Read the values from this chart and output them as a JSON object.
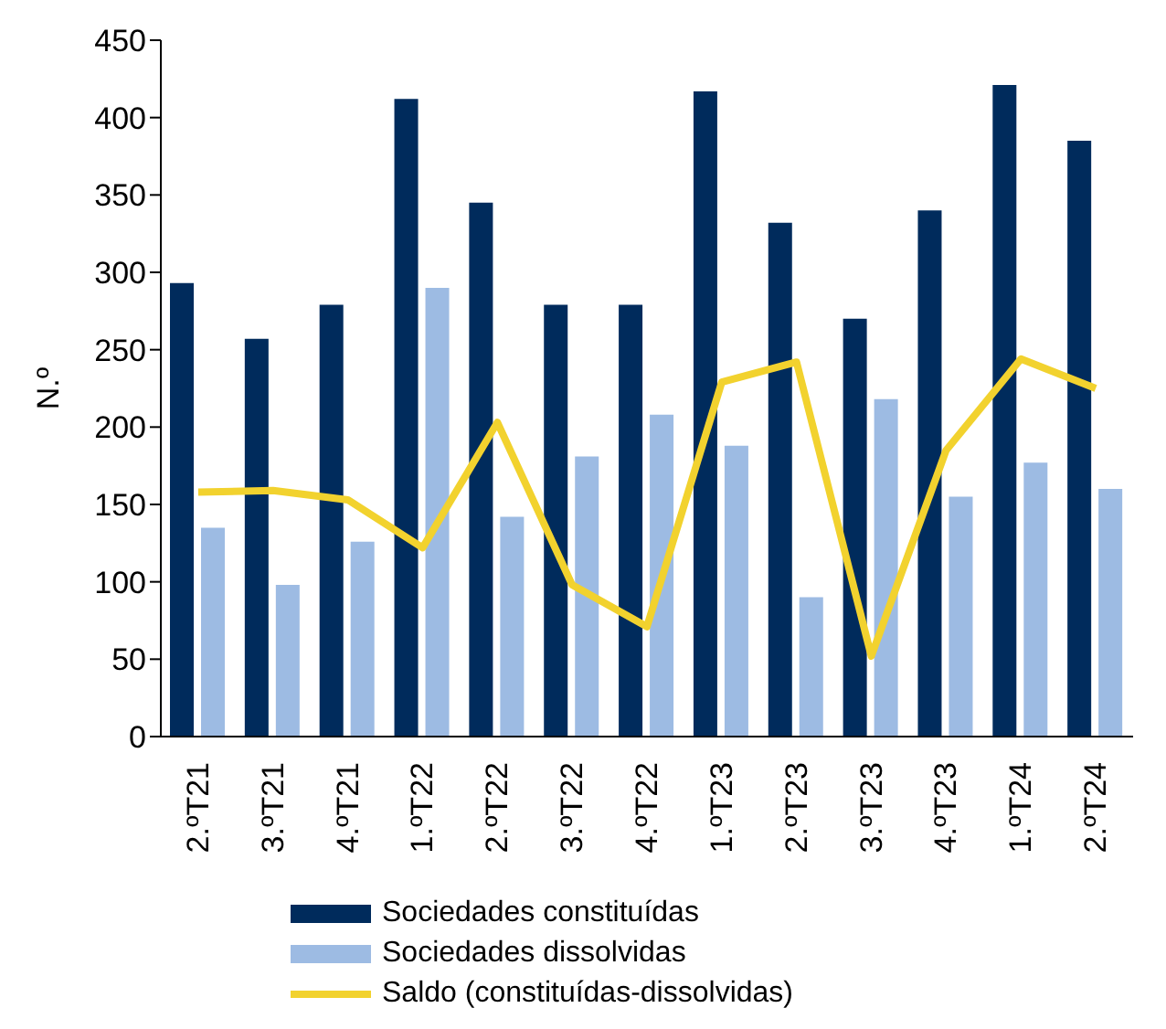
{
  "chart_data": {
    "type": "bar",
    "ylabel": "N.º",
    "categories": [
      "2.ºT21",
      "3.ºT21",
      "4.ºT21",
      "1.ºT22",
      "2.ºT22",
      "3.ºT22",
      "4.ºT22",
      "1.ºT23",
      "2.ºT23",
      "3.ºT23",
      "4.ºT23",
      "1.ºT24",
      "2.ºT24"
    ],
    "series": [
      {
        "name": "Sociedades constituídas",
        "color": "#002b5c",
        "values": [
          293,
          257,
          279,
          412,
          345,
          279,
          279,
          417,
          332,
          270,
          340,
          421,
          385
        ]
      },
      {
        "name": "Sociedades dissolvidas",
        "color": "#9dbbe3",
        "values": [
          135,
          98,
          126,
          290,
          142,
          181,
          208,
          188,
          90,
          218,
          155,
          177,
          160
        ]
      },
      {
        "name": "Saldo (constituídas-dissolvidas)",
        "type": "line",
        "color": "#f2d22e",
        "values": [
          158,
          159,
          153,
          122,
          203,
          98,
          71,
          229,
          242,
          52,
          185,
          244,
          225
        ]
      }
    ],
    "ylim": [
      0,
      450
    ],
    "yticks": [
      0,
      50,
      100,
      150,
      200,
      250,
      300,
      350,
      400,
      450
    ],
    "grid": false,
    "legend": "bottom",
    "marker": "none"
  }
}
